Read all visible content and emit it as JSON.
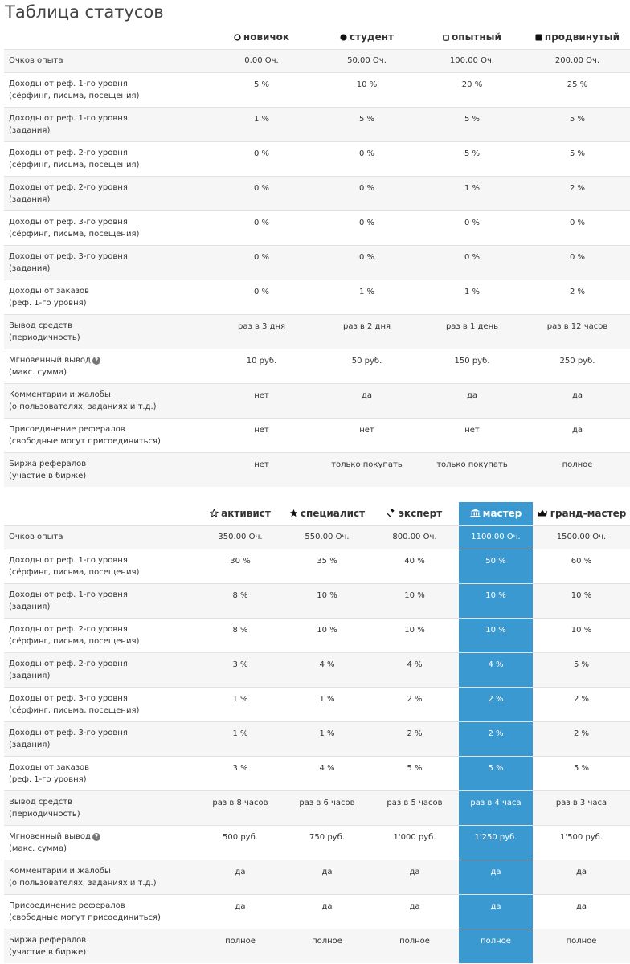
{
  "title": "Таблица статусов",
  "colors": {
    "highlight": "#3a99d0",
    "row_alt": "#f6f6f6",
    "border": "#e2e2e2"
  },
  "table1": {
    "columns": [
      {
        "label": "новичок",
        "icon": "circle-outline-icon"
      },
      {
        "label": "студент",
        "icon": "circle-filled-icon"
      },
      {
        "label": "опытный",
        "icon": "square-outline-icon"
      },
      {
        "label": "продвинутый",
        "icon": "square-filled-icon"
      }
    ],
    "rows": [
      {
        "label1": "Очков опыта",
        "label2": "",
        "values": [
          "0.00 Оч.",
          "50.00 Оч.",
          "100.00 Оч.",
          "200.00 Оч."
        ]
      },
      {
        "label1": "Доходы от реф. 1-го уровня",
        "label2": "(сёрфинг, письма, посещения)",
        "values": [
          "5 %",
          "10 %",
          "20 %",
          "25 %"
        ]
      },
      {
        "label1": "Доходы от реф. 1-го уровня",
        "label2": "(задания)",
        "values": [
          "1 %",
          "5 %",
          "5 %",
          "5 %"
        ]
      },
      {
        "label1": "Доходы от реф. 2-го уровня",
        "label2": "(сёрфинг, письма, посещения)",
        "values": [
          "0 %",
          "0 %",
          "5 %",
          "5 %"
        ]
      },
      {
        "label1": "Доходы от реф. 2-го уровня",
        "label2": "(задания)",
        "values": [
          "0 %",
          "0 %",
          "1 %",
          "2 %"
        ]
      },
      {
        "label1": "Доходы от реф. 3-го уровня",
        "label2": "(сёрфинг, письма, посещения)",
        "values": [
          "0 %",
          "0 %",
          "0 %",
          "0 %"
        ]
      },
      {
        "label1": "Доходы от реф. 3-го уровня",
        "label2": "(задания)",
        "values": [
          "0 %",
          "0 %",
          "0 %",
          "0 %"
        ]
      },
      {
        "label1": "Доходы от заказов",
        "label2": "(реф. 1-го уровня)",
        "values": [
          "0 %",
          "1 %",
          "1 %",
          "2 %"
        ]
      },
      {
        "label1": "Вывод средств",
        "label2": "(периодичность)",
        "values": [
          "раз в 3 дня",
          "раз в 2 дня",
          "раз в 1 день",
          "раз в 12 часов"
        ]
      },
      {
        "label1": "Мгновенный вывод",
        "label2": "(макс. сумма)",
        "help": true,
        "values": [
          "10 руб.",
          "50 руб.",
          "150 руб.",
          "250 руб."
        ]
      },
      {
        "label1": "Комментарии и жалобы",
        "label2": "(о пользователях, заданиях и т.д.)",
        "values": [
          "нет",
          "да",
          "да",
          "да"
        ]
      },
      {
        "label1": "Присоединение рефералов",
        "label2": "(свободные могут присоединиться)",
        "values": [
          "нет",
          "нет",
          "нет",
          "да"
        ]
      },
      {
        "label1": "Биржа рефералов",
        "label2": "(участие в бирже)",
        "values": [
          "нет",
          "только покупать",
          "только покупать",
          "полное"
        ]
      }
    ]
  },
  "table2": {
    "highlight_col": 3,
    "columns": [
      {
        "label": "активист",
        "icon": "star-outline-icon"
      },
      {
        "label": "специалист",
        "icon": "star-filled-icon"
      },
      {
        "label": "эксперт",
        "icon": "gavel-icon"
      },
      {
        "label": "мастер",
        "icon": "bank-icon"
      },
      {
        "label": "гранд-мастер",
        "icon": "crown-icon"
      }
    ],
    "rows": [
      {
        "label1": "Очков опыта",
        "label2": "",
        "values": [
          "350.00 Оч.",
          "550.00 Оч.",
          "800.00 Оч.",
          "1100.00 Оч.",
          "1500.00 Оч."
        ]
      },
      {
        "label1": "Доходы от реф. 1-го уровня",
        "label2": "(сёрфинг, письма, посещения)",
        "values": [
          "30 %",
          "35 %",
          "40 %",
          "50 %",
          "60 %"
        ]
      },
      {
        "label1": "Доходы от реф. 1-го уровня",
        "label2": "(задания)",
        "values": [
          "8 %",
          "10 %",
          "10 %",
          "10 %",
          "10 %"
        ]
      },
      {
        "label1": "Доходы от реф. 2-го уровня",
        "label2": "(сёрфинг, письма, посещения)",
        "values": [
          "8 %",
          "10 %",
          "10 %",
          "10 %",
          "10 %"
        ]
      },
      {
        "label1": "Доходы от реф. 2-го уровня",
        "label2": "(задания)",
        "values": [
          "3 %",
          "4 %",
          "4 %",
          "4 %",
          "5 %"
        ]
      },
      {
        "label1": "Доходы от реф. 3-го уровня",
        "label2": "(сёрфинг, письма, посещения)",
        "values": [
          "1 %",
          "1 %",
          "2 %",
          "2 %",
          "2 %"
        ]
      },
      {
        "label1": "Доходы от реф. 3-го уровня",
        "label2": "(задания)",
        "values": [
          "1 %",
          "1 %",
          "2 %",
          "2 %",
          "2 %"
        ]
      },
      {
        "label1": "Доходы от заказов",
        "label2": "(реф. 1-го уровня)",
        "values": [
          "3 %",
          "4 %",
          "5 %",
          "5 %",
          "5 %"
        ]
      },
      {
        "label1": "Вывод средств",
        "label2": "(периодичность)",
        "values": [
          "раз в 8 часов",
          "раз в 6 часов",
          "раз в 5 часов",
          "раз в 4 часа",
          "раз в 3 часа"
        ]
      },
      {
        "label1": "Мгновенный вывод",
        "label2": "(макс. сумма)",
        "help": true,
        "values": [
          "500 руб.",
          "750 руб.",
          "1'000 руб.",
          "1'250 руб.",
          "1'500 руб."
        ]
      },
      {
        "label1": "Комментарии и жалобы",
        "label2": "(о пользователях, заданиях и т.д.)",
        "values": [
          "да",
          "да",
          "да",
          "да",
          "да"
        ]
      },
      {
        "label1": "Присоединение рефералов",
        "label2": "(свободные могут присоединиться)",
        "values": [
          "да",
          "да",
          "да",
          "да",
          "да"
        ]
      },
      {
        "label1": "Биржа рефералов",
        "label2": "(участие в бирже)",
        "values": [
          "полное",
          "полное",
          "полное",
          "полное",
          "полное"
        ]
      }
    ]
  }
}
